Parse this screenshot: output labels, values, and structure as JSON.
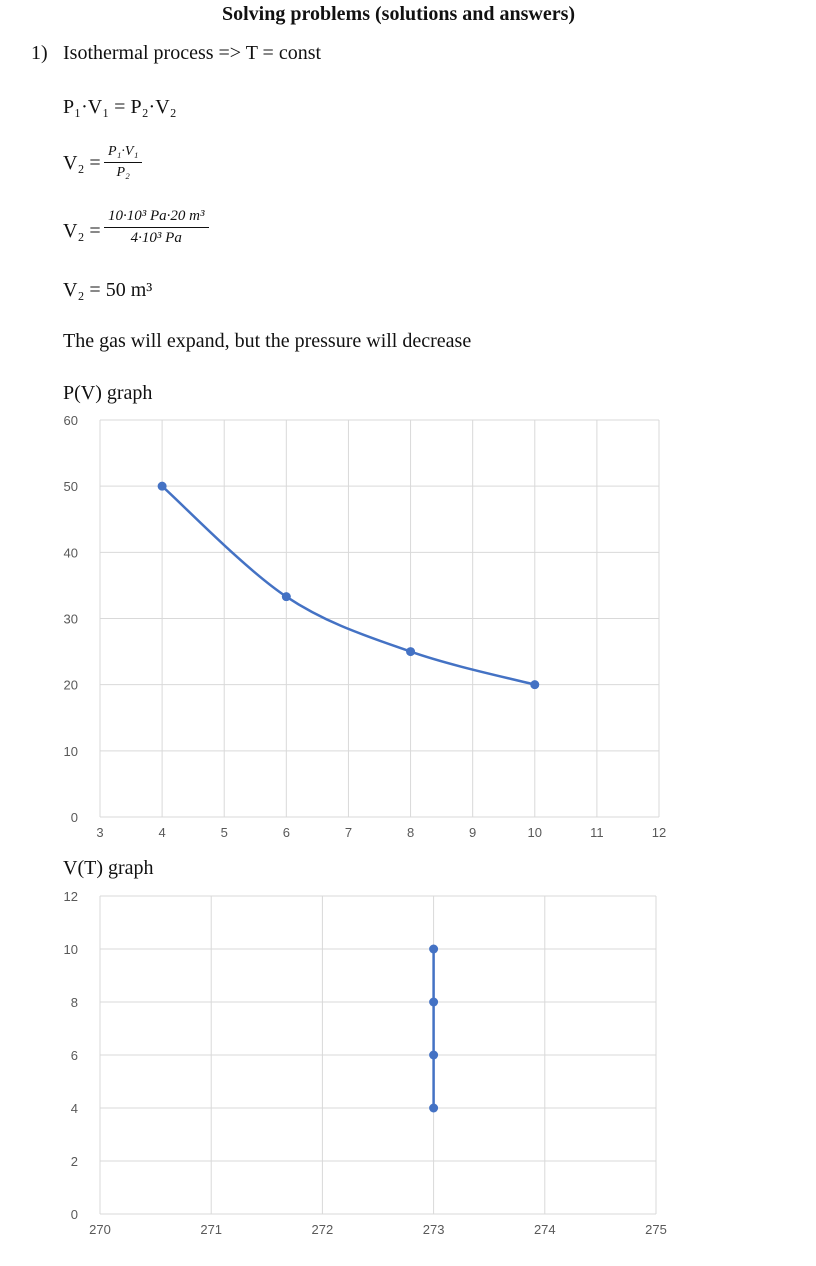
{
  "page": {
    "title": "Solving problems (solutions and answers)",
    "problem_number": "1)",
    "problem_heading": "Isothermal process => T = const",
    "eq1": "P₁·V₁ = P₂·V₂",
    "eq2_lhs": "V₂ =",
    "eq2_num": "P₁·V₁",
    "eq2_den": "P₂",
    "eq3_lhs": "V₂ =",
    "eq3_num": "10·10³ Pa·20 m³",
    "eq3_den": "4·10³ Pa",
    "eq4": "V₂ = 50 m³",
    "conclusion": "The gas will expand, but the pressure will decrease",
    "graph1_label": "P(V) graph",
    "graph2_label": "V(T) graph"
  },
  "colors": {
    "series": "#4472C4",
    "grid": "#D9D9D9",
    "tick_text": "#595959"
  },
  "chart_data": [
    {
      "type": "line",
      "title": "",
      "xlabel": "",
      "ylabel": "",
      "xlim": [
        3,
        12
      ],
      "ylim": [
        0,
        60
      ],
      "xticks": [
        3,
        4,
        5,
        6,
        7,
        8,
        9,
        10,
        11,
        12
      ],
      "yticks": [
        0,
        10,
        20,
        30,
        40,
        50,
        60
      ],
      "grid": true,
      "smooth": true,
      "series": [
        {
          "x": [
            4,
            6,
            8,
            10
          ],
          "y": [
            50,
            33.3,
            25,
            20
          ]
        }
      ]
    },
    {
      "type": "line",
      "title": "",
      "xlabel": "",
      "ylabel": "",
      "xlim": [
        270,
        275
      ],
      "ylim": [
        0,
        12
      ],
      "xticks": [
        270,
        271,
        272,
        273,
        274,
        275
      ],
      "yticks": [
        0,
        2,
        4,
        6,
        8,
        10,
        12
      ],
      "grid": true,
      "smooth": false,
      "series": [
        {
          "x": [
            273,
            273,
            273,
            273
          ],
          "y": [
            4,
            6,
            8,
            10
          ]
        }
      ]
    }
  ]
}
